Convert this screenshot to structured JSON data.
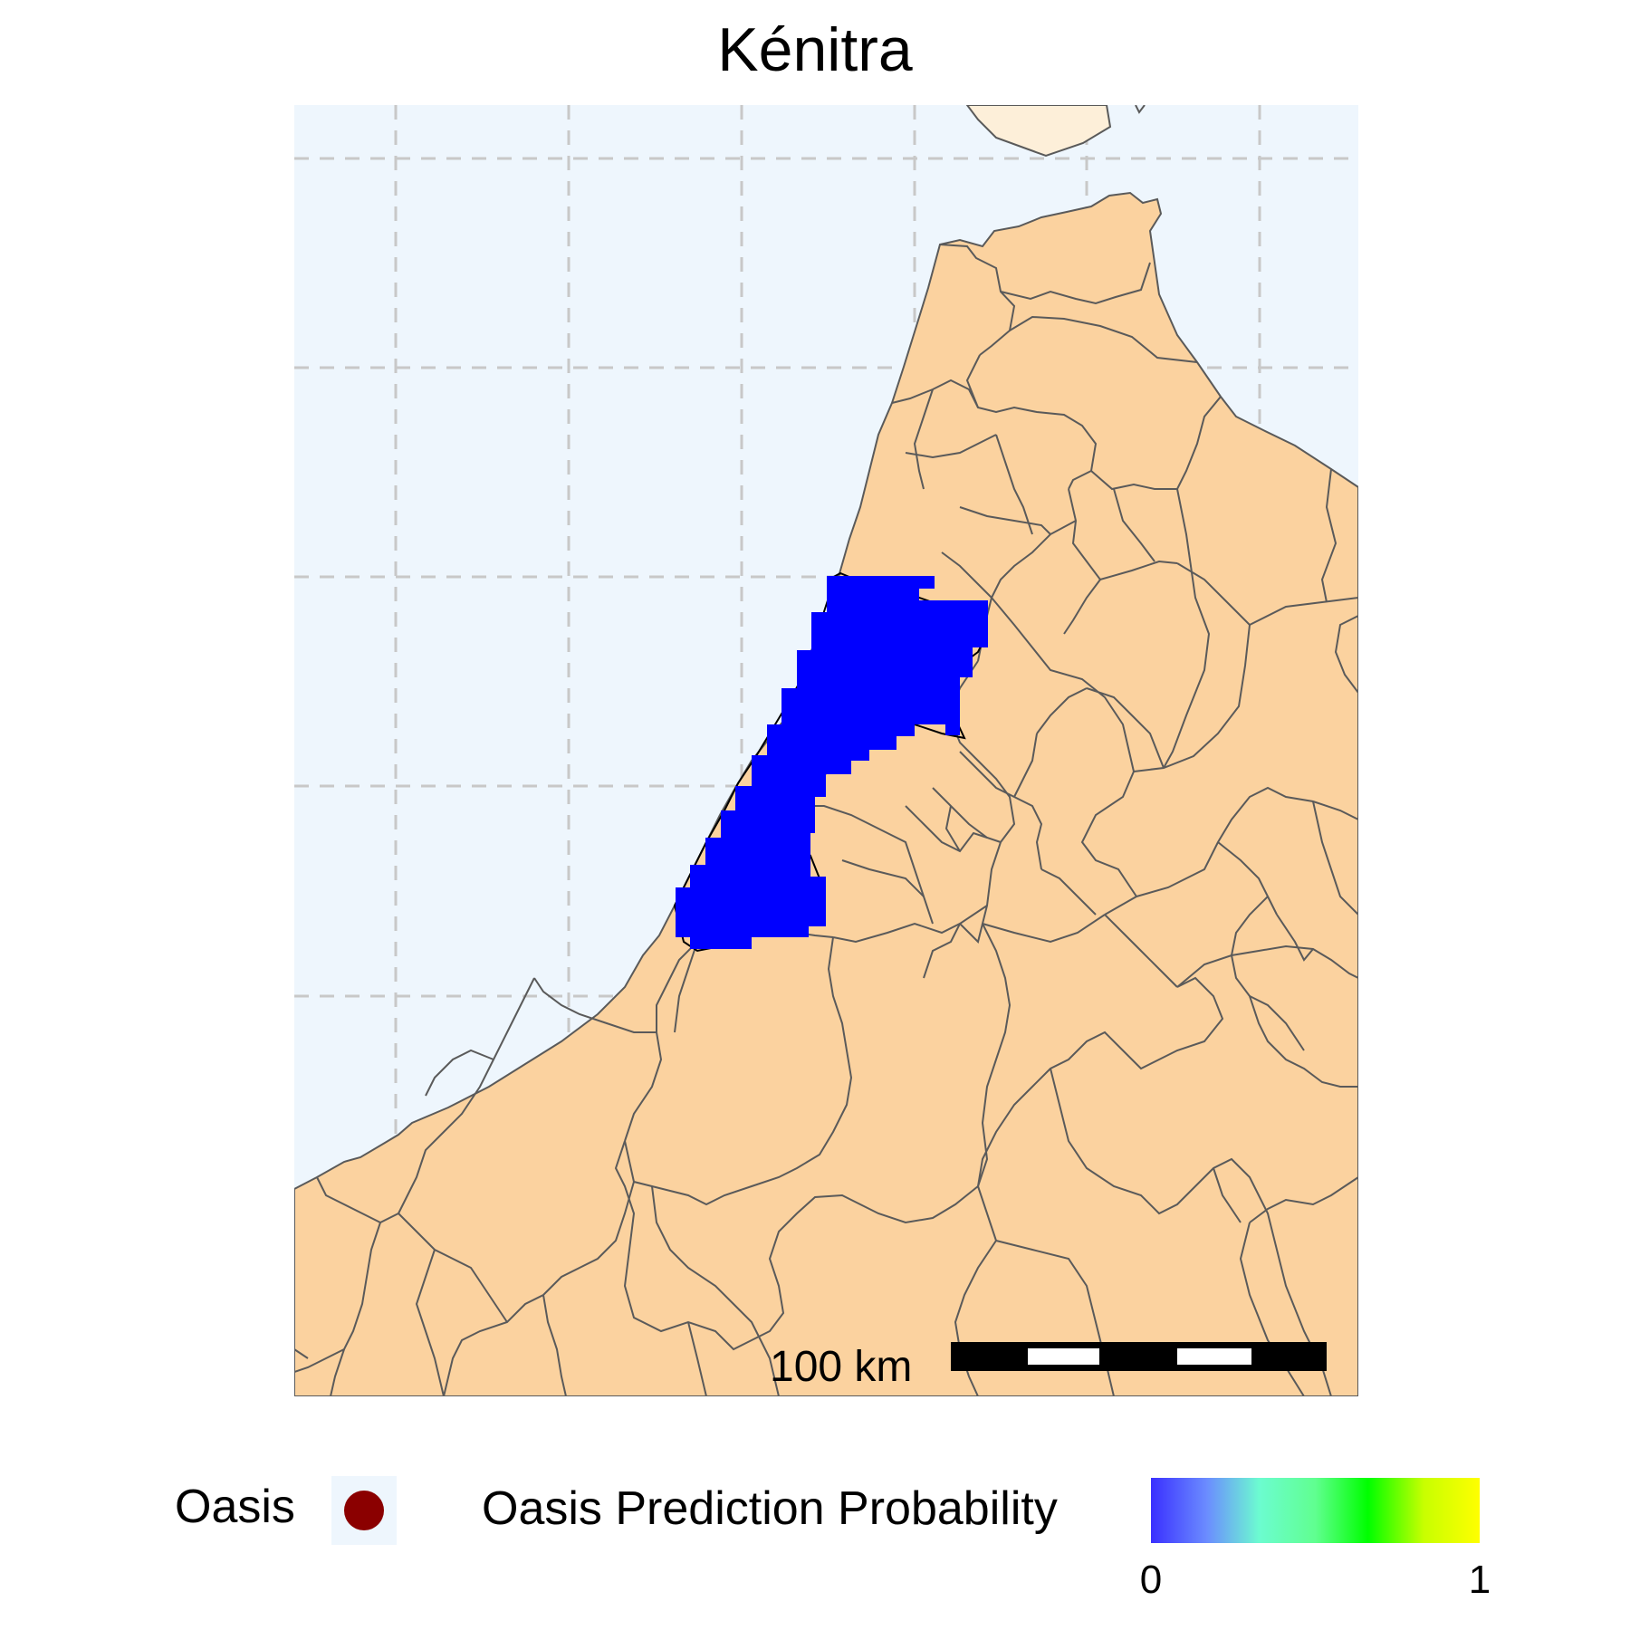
{
  "title": "Kénitra",
  "scalebar": {
    "label": "100 km"
  },
  "legend": {
    "oasis_label": "Oasis",
    "oasis_color": "#8b0000",
    "probability_label": "Oasis Prediction Probability",
    "probability_min": "0",
    "probability_max": "1",
    "probability_colors": [
      "#3a30ff",
      "#6b8cff",
      "#6cfcd0",
      "#60ff90",
      "#00ff00",
      "#c8ff00",
      "#ffff00"
    ]
  },
  "colors": {
    "sea": "#eef6fd",
    "land": "#fbd29f",
    "land_far": "#fdefd9",
    "borders": "#5a5a5a",
    "grid": "#c8c8c8",
    "prediction": "#0000ff"
  }
}
